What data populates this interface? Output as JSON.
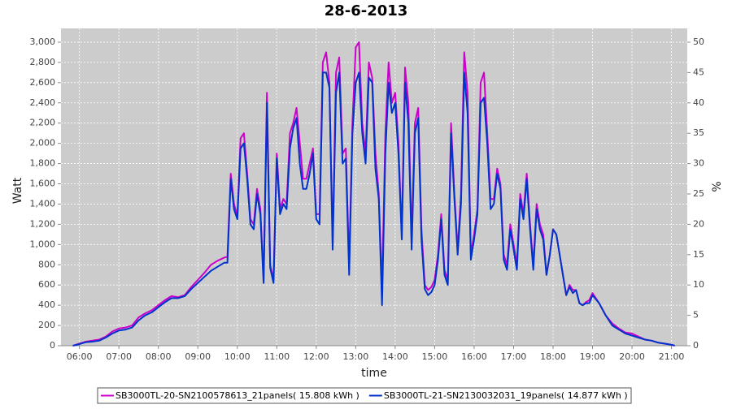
{
  "chart_data": {
    "type": "line",
    "title": "28-6-2013",
    "x_label": "time",
    "y_label": "Watt",
    "y2_label": "%",
    "x": [
      "05:50",
      "06:00",
      "06:10",
      "06:20",
      "06:30",
      "06:40",
      "06:50",
      "07:00",
      "07:10",
      "07:20",
      "07:30",
      "07:40",
      "07:50",
      "08:00",
      "08:10",
      "08:20",
      "08:30",
      "08:40",
      "08:50",
      "09:00",
      "09:10",
      "09:20",
      "09:30",
      "09:40",
      "09:45",
      "09:50",
      "09:55",
      "10:00",
      "10:05",
      "10:10",
      "10:15",
      "10:20",
      "10:25",
      "10:30",
      "10:35",
      "10:40",
      "10:45",
      "10:50",
      "10:55",
      "11:00",
      "11:05",
      "11:10",
      "11:15",
      "11:20",
      "11:25",
      "11:30",
      "11:35",
      "11:40",
      "11:45",
      "11:50",
      "11:55",
      "12:00",
      "12:05",
      "12:10",
      "12:15",
      "12:20",
      "12:25",
      "12:30",
      "12:35",
      "12:40",
      "12:45",
      "12:50",
      "12:55",
      "13:00",
      "13:05",
      "13:10",
      "13:15",
      "13:20",
      "13:25",
      "13:30",
      "13:35",
      "13:40",
      "13:45",
      "13:50",
      "13:55",
      "14:00",
      "14:05",
      "14:10",
      "14:15",
      "14:20",
      "14:25",
      "14:30",
      "14:35",
      "14:40",
      "14:45",
      "14:50",
      "14:55",
      "15:00",
      "15:05",
      "15:10",
      "15:15",
      "15:20",
      "15:25",
      "15:30",
      "15:35",
      "15:40",
      "15:45",
      "15:50",
      "15:55",
      "16:00",
      "16:05",
      "16:10",
      "16:15",
      "16:20",
      "16:25",
      "16:30",
      "16:35",
      "16:40",
      "16:45",
      "16:50",
      "16:55",
      "17:00",
      "17:05",
      "17:10",
      "17:15",
      "17:20",
      "17:25",
      "17:30",
      "17:35",
      "17:40",
      "17:45",
      "17:50",
      "17:55",
      "18:00",
      "18:05",
      "18:10",
      "18:15",
      "18:20",
      "18:25",
      "18:30",
      "18:35",
      "18:40",
      "18:45",
      "18:50",
      "18:55",
      "19:00",
      "19:10",
      "19:20",
      "19:30",
      "19:40",
      "19:50",
      "20:00",
      "20:10",
      "20:20",
      "20:30",
      "20:40",
      "20:50",
      "21:00",
      "21:05"
    ],
    "series": [
      {
        "name": "SB3000TL-20-SN2100578613_21panels( 15.808 kWh )",
        "color": "#cc00cc",
        "values": [
          0,
          20,
          40,
          50,
          60,
          90,
          140,
          170,
          180,
          200,
          280,
          320,
          350,
          400,
          450,
          490,
          480,
          500,
          580,
          650,
          720,
          800,
          840,
          870,
          880,
          1700,
          1400,
          1280,
          2050,
          2100,
          1700,
          1250,
          1200,
          1550,
          1350,
          650,
          2500,
          800,
          650,
          1900,
          1350,
          1450,
          1400,
          2100,
          2200,
          2350,
          2000,
          1650,
          1650,
          1800,
          1950,
          1300,
          1300,
          2800,
          2900,
          2600,
          1000,
          2700,
          2850,
          1900,
          1950,
          800,
          2200,
          2950,
          3000,
          2200,
          1900,
          2800,
          2650,
          1900,
          1500,
          550,
          2100,
          2800,
          2400,
          2500,
          2000,
          1100,
          2750,
          2400,
          1050,
          2200,
          2350,
          1150,
          600,
          550,
          580,
          650,
          900,
          1300,
          750,
          650,
          2200,
          1500,
          950,
          1500,
          2900,
          2500,
          900,
          1100,
          1350,
          2600,
          2700,
          2100,
          1450,
          1450,
          1750,
          1600,
          900,
          800,
          1200,
          1000,
          800,
          1500,
          1300,
          1700,
          1200,
          800,
          1400,
          1200,
          1100,
          700,
          900,
          1150,
          1100,
          900,
          700,
          500,
          600,
          550,
          550,
          420,
          400,
          430,
          450,
          520,
          420,
          300,
          220,
          170,
          130,
          120,
          90,
          60,
          50,
          30,
          20,
          10,
          0
        ]
      },
      {
        "name": "SB3000TL-21-SN2130032031_19panels( 14.877 kWh )",
        "color": "#0033cc",
        "values": [
          0,
          15,
          35,
          40,
          50,
          80,
          120,
          150,
          160,
          180,
          250,
          300,
          330,
          380,
          430,
          470,
          470,
          490,
          560,
          620,
          680,
          740,
          780,
          820,
          820,
          1650,
          1350,
          1250,
          1950,
          2000,
          1650,
          1200,
          1150,
          1500,
          1300,
          620,
          2400,
          770,
          620,
          1850,
          1300,
          1400,
          1350,
          1950,
          2150,
          2250,
          1800,
          1550,
          1550,
          1700,
          1900,
          1250,
          1200,
          2700,
          2700,
          2550,
          950,
          2500,
          2700,
          1800,
          1850,
          700,
          2100,
          2600,
          2700,
          2100,
          1800,
          2650,
          2600,
          1750,
          1450,
          400,
          1900,
          2600,
          2300,
          2400,
          1900,
          1050,
          2600,
          2200,
          950,
          2100,
          2250,
          1050,
          560,
          500,
          530,
          600,
          850,
          1250,
          700,
          600,
          2100,
          1450,
          900,
          1400,
          2700,
          2300,
          850,
          1050,
          1300,
          2400,
          2450,
          2000,
          1350,
          1400,
          1700,
          1550,
          850,
          750,
          1150,
          950,
          750,
          1450,
          1250,
          1650,
          1150,
          750,
          1350,
          1150,
          1050,
          700,
          900,
          1150,
          1100,
          900,
          700,
          500,
          580,
          520,
          550,
          420,
          400,
          420,
          420,
          500,
          420,
          300,
          200,
          160,
          120,
          100,
          80,
          60,
          50,
          30,
          20,
          10,
          0
        ]
      }
    ],
    "xlim": [
      "05:32",
      "21:24"
    ],
    "xticks": [
      "06:00",
      "07:00",
      "08:00",
      "09:00",
      "10:00",
      "11:00",
      "12:00",
      "13:00",
      "14:00",
      "15:00",
      "16:00",
      "17:00",
      "18:00",
      "19:00",
      "20:00",
      "21:00"
    ],
    "ylim": [
      0,
      3136
    ],
    "yticks": [
      0,
      200,
      400,
      600,
      800,
      {
        "value": 1000,
        "label": "1,000"
      },
      {
        "value": 1200,
        "label": "1,200"
      },
      {
        "value": 1400,
        "label": "1,400"
      },
      {
        "value": 1600,
        "label": "1,600"
      },
      {
        "value": 1800,
        "label": "1,800"
      },
      {
        "value": 2000,
        "label": "2,000"
      },
      {
        "value": 2200,
        "label": "2,200"
      },
      {
        "value": 2400,
        "label": "2,400"
      },
      {
        "value": 2600,
        "label": "2,600"
      },
      {
        "value": 2800,
        "label": "2,800"
      },
      {
        "value": 3000,
        "label": "3,000"
      }
    ],
    "y2lim": [
      0,
      52.27
    ],
    "y2ticks": [
      0,
      5,
      10,
      15,
      20,
      25,
      30,
      35,
      40,
      45,
      50
    ],
    "grid": true,
    "legend": "bottom"
  }
}
